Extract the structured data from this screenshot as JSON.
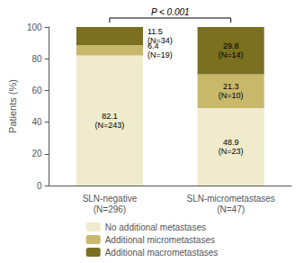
{
  "chart_data": {
    "type": "bar",
    "stacked": true,
    "categories": [
      "SLN-negative\n(N=296)",
      "SLN-micrometastases\n(N=47)"
    ],
    "series": [
      {
        "name": "No additional metastases",
        "color": "#f0ebcc",
        "values": [
          82.1,
          48.9
        ],
        "value_labels": [
          "82.1\n(N=243)",
          "48.9\n(N=23)"
        ]
      },
      {
        "name": "Additional micrometastases",
        "color": "#c8b86a",
        "values": [
          6.4,
          21.3
        ],
        "value_labels": [
          "6.4\n(N=19)",
          "21.3\n(N=10)"
        ]
      },
      {
        "name": "Additional macrometastases",
        "color": "#7a7020",
        "values": [
          11.5,
          29.8
        ],
        "value_labels": [
          "11.5\n(N=34)",
          "29.8\n(N=14)"
        ]
      }
    ],
    "data_labels": true,
    "ylabel": "Patients (%)",
    "ylim": [
      0,
      100
    ],
    "yticks": [
      0,
      20,
      40,
      60,
      80,
      100
    ],
    "annotations": [
      "P < 0.001"
    ],
    "grid": false,
    "legend": "bottom"
  }
}
